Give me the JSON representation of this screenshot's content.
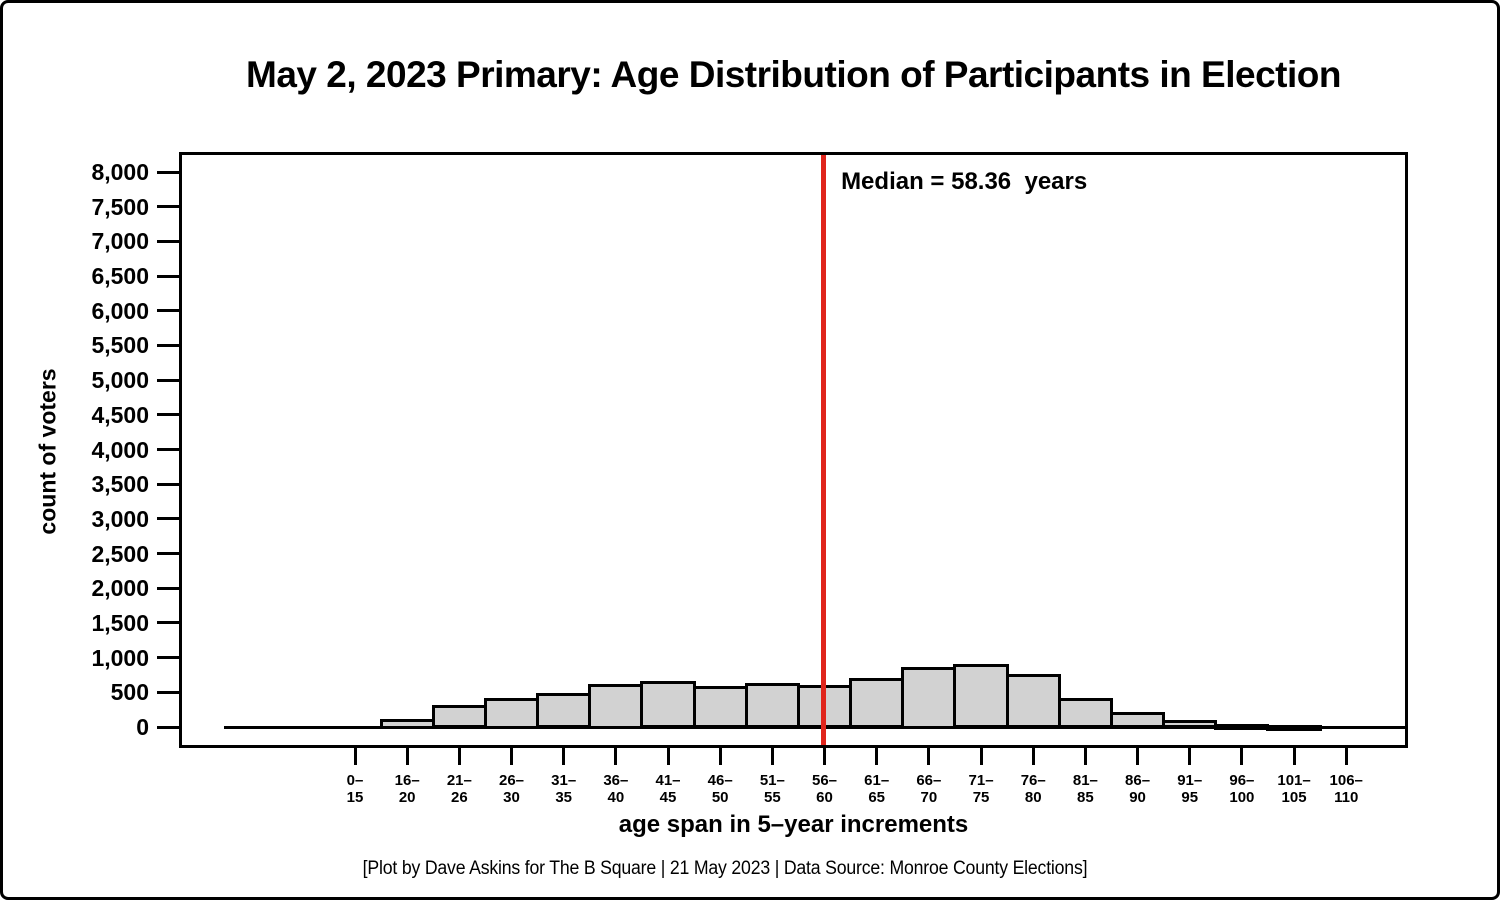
{
  "title": "May 2, 2023 Primary: Age Distribution of Participants in Election",
  "footer": "[Plot by Dave Askins for The B Square | 21 May 2023 | Data Source: Monroe County Elections]",
  "chart_data": {
    "type": "bar",
    "title": "May 2, 2023 Primary: Age Distribution of Participants in Election",
    "xlabel": "age span in 5–year increments",
    "ylabel": "count of voters",
    "categories": [
      "0–15",
      "16–20",
      "21–26",
      "26–30",
      "31–35",
      "36–40",
      "41–45",
      "46–50",
      "51–55",
      "56–60",
      "61–65",
      "66–70",
      "71–75",
      "76–80",
      "81–85",
      "86–90",
      "91–95",
      "96–100",
      "101–105",
      "106–110"
    ],
    "values": [
      0,
      100,
      290,
      400,
      470,
      600,
      640,
      570,
      615,
      590,
      680,
      850,
      890,
      740,
      390,
      195,
      80,
      25,
      5,
      0
    ],
    "ylim": [
      0,
      8000
    ],
    "yticks": [
      0,
      500,
      1000,
      1500,
      2000,
      2500,
      3000,
      3500,
      4000,
      4500,
      5000,
      5500,
      6000,
      6500,
      7000,
      7500,
      8000
    ],
    "grid": false,
    "median_years": 58.36,
    "median_annotation": "Median = 58.36  years",
    "colors": {
      "bar_fill": "#d2d2d2",
      "bar_stroke": "#000000",
      "median_line": "#e0251c",
      "axis": "#000000",
      "background": "#ffffff"
    }
  }
}
